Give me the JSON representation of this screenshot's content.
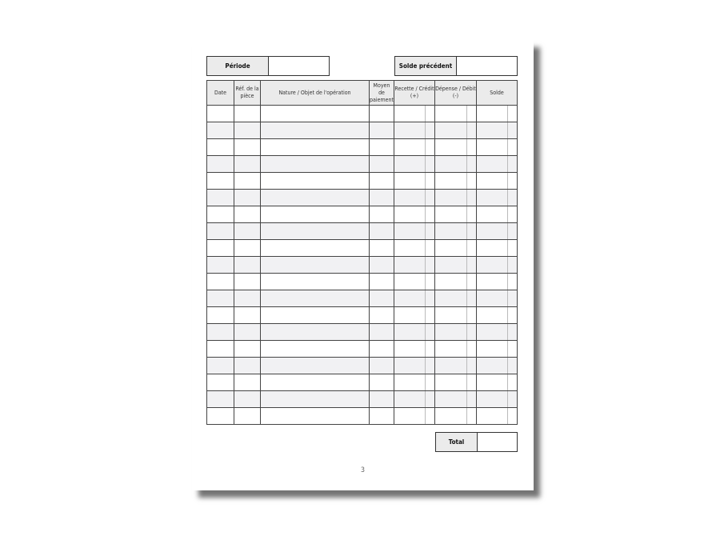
{
  "header": {
    "period_label": "Période",
    "period_value": "",
    "previous_balance_label": "Solde précédent",
    "previous_balance_value": ""
  },
  "table": {
    "columns": [
      "Date",
      "Réf. de la pièce",
      "Nature / Objet de l'opération",
      "Moyen de paiement",
      "Recette / Crédit (+)",
      "Dépense / Débit (-)",
      "Solde"
    ],
    "row_count": 19
  },
  "footer": {
    "total_label": "Total",
    "total_value": "",
    "page_number": "3"
  }
}
